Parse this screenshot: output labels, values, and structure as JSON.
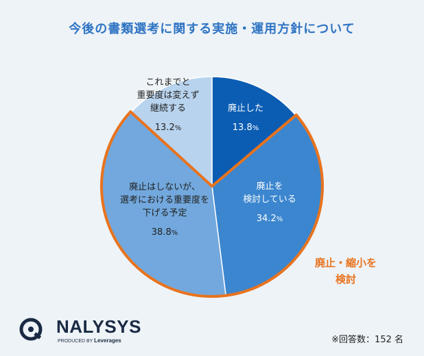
{
  "chart_data": {
    "type": "pie",
    "title": "今後の書類選考に関する実施・運用方針について",
    "start_angle_deg": 0,
    "direction": "clockwise",
    "slices": [
      {
        "label_lines": [
          "廃止した"
        ],
        "value": 13.8,
        "value_text": "13.8",
        "unit": "%",
        "color": "#0b5db3",
        "text": "light"
      },
      {
        "label_lines": [
          "廃止を",
          "検討している"
        ],
        "value": 34.2,
        "value_text": "34.2",
        "unit": "%",
        "color": "#3b86cf",
        "text": "light"
      },
      {
        "label_lines": [
          "廃止はしないが、",
          "選考における重要度を",
          "下げる予定"
        ],
        "value": 38.8,
        "value_text": "38.8",
        "unit": "%",
        "color": "#72a8dd",
        "text": "dark"
      },
      {
        "label_lines": [
          "これまでと",
          "重要度は変えず",
          "継続する"
        ],
        "value": 13.2,
        "value_text": "13.2",
        "unit": "%",
        "color": "#b8d3ee",
        "text": "dark"
      }
    ],
    "highlight": {
      "slices": [
        1,
        2
      ],
      "color": "#e8731e",
      "label_lines": [
        "廃止・縮小を",
        "検討"
      ]
    }
  },
  "footnote": "※回答数：152 名",
  "logo": {
    "name": "NALYSYS",
    "sub_prefix": "PRODUCED BY",
    "sub_brand": "Leverages"
  }
}
